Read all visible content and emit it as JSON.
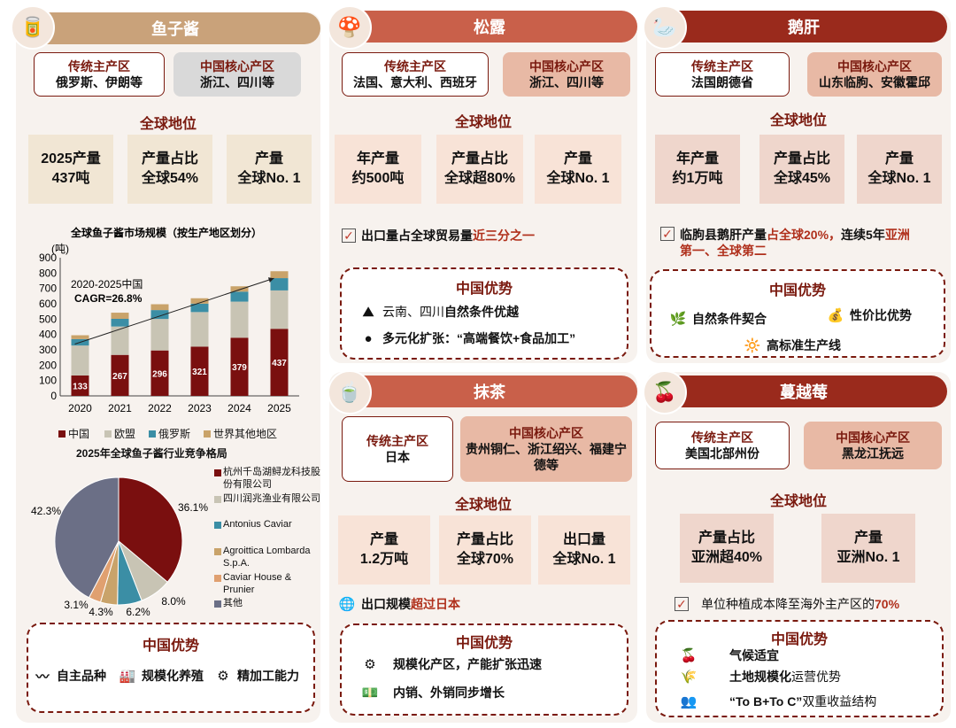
{
  "caviar": {
    "header": "鱼子酱",
    "trad_title": "传统主产区",
    "trad_value": "俄罗斯、伊朗等",
    "china_title": "中国核心产区",
    "china_value": "浙江、四川等",
    "global_title": "全球地位",
    "stats": [
      {
        "l1": "2025产量",
        "l2": "437吨"
      },
      {
        "l1": "产量占比",
        "l2": "全球54%"
      },
      {
        "l1": "产量",
        "l2": "全球No. 1"
      }
    ],
    "adv_title": "中国优势",
    "advantages": [
      "自主品种",
      "规模化养殖",
      "精加工能力"
    ]
  },
  "truffle": {
    "header": "松露",
    "trad_title": "传统主产区",
    "trad_value": "法国、意大利、西班牙",
    "china_title": "中国核心产区",
    "china_value": "浙江、四川等",
    "global_title": "全球地位",
    "stats": [
      {
        "l1": "年产量",
        "l2": "约500吨"
      },
      {
        "l1": "产量占比",
        "l2": "全球超80%"
      },
      {
        "l1": "产量",
        "l2": "全球No. 1"
      }
    ],
    "note_a": "出口量占全球贸易量",
    "note_b": "近三分之一",
    "adv_title": "中国优势",
    "adv1_a": "云南、四川",
    "adv1_b": "自然条件优越",
    "adv2": "多元化扩张：“高端餐饮+食品加工”"
  },
  "foiegras": {
    "header": "鹅肝",
    "trad_title": "传统主产区",
    "trad_value": "法国朗德省",
    "china_title": "中国核心产区",
    "china_value": "山东临朐、安徽霍邱",
    "global_title": "全球地位",
    "stats": [
      {
        "l1": "年产量",
        "l2": "约1万吨"
      },
      {
        "l1": "产量占比",
        "l2": "全球45%"
      },
      {
        "l1": "产量",
        "l2": "全球No. 1"
      }
    ],
    "note_a": "临朐县鹅肝产量",
    "note_b": "占全球20%，",
    "note_c": "连续5年",
    "note_d": "亚洲",
    "note_e": "第一、全球第二",
    "adv_title": "中国优势",
    "advantages": [
      "自然条件契合",
      "性价比优势",
      "高标准生产线"
    ]
  },
  "matcha": {
    "header": "抹茶",
    "trad_title": "传统主产区",
    "trad_value": "日本",
    "china_title": "中国核心产区",
    "china_value": "贵州铜仁、浙江绍兴、福建宁德等",
    "global_title": "全球地位",
    "stats": [
      {
        "l1": "产量",
        "l2": "1.2万吨"
      },
      {
        "l1": "产量占比",
        "l2": "全球70%"
      },
      {
        "l1": "出口量",
        "l2": "全球No. 1"
      }
    ],
    "note_a": "出口规模",
    "note_b": "超过日本",
    "adv_title": "中国优势",
    "advantages": [
      "规模化产区，产能扩张迅速",
      "内销、外销同步增长"
    ]
  },
  "cranberry": {
    "header": "蔓越莓",
    "trad_title": "传统主产区",
    "trad_value": "美国北部州份",
    "china_title": "中国核心产区",
    "china_value": "黑龙江抚远",
    "global_title": "全球地位",
    "stats": [
      {
        "l1": "产量占比",
        "l2": "亚洲超40%"
      },
      {
        "l1": "产量",
        "l2": "亚洲No. 1"
      }
    ],
    "note_a": "单位种植成本降至海外主产区的",
    "note_b": "70%",
    "adv_title": "中国优势",
    "adv1": "气候适宜",
    "adv2_a": "土地规模化",
    "adv2_b": "运营优势",
    "adv3_a": "“To B+To C”",
    "adv3_b": "双重收益结构"
  },
  "colors": {
    "china": "#7a0f0f",
    "eu": "#c8c4b4",
    "russia": "#3b8ea5",
    "other": "#c9a36a",
    "pie_hangzhou": "#7a0f0f",
    "pie_sichuan": "#c8c4b4",
    "pie_antonius": "#3b8ea5",
    "pie_agroittica": "#c9a36a",
    "pie_caviarhouse": "#e0a070",
    "pie_other": "#6b6f86"
  },
  "chart_data": [
    {
      "type": "bar",
      "stacked": true,
      "title": "全球鱼子酱市场规模（按生产地区划分）",
      "unit": "(吨)",
      "categories": [
        "2020",
        "2021",
        "2022",
        "2023",
        "2024",
        "2025"
      ],
      "ylim": [
        0,
        900
      ],
      "yticks": [
        0,
        100,
        200,
        300,
        400,
        500,
        600,
        700,
        800,
        900
      ],
      "series": [
        {
          "name": "中国",
          "values": [
            133,
            267,
            296,
            321,
            379,
            437
          ],
          "labels": [
            "133",
            "267",
            "296",
            "321",
            "379",
            "437"
          ]
        },
        {
          "name": "欧盟",
          "values": [
            195,
            185,
            205,
            225,
            235,
            250
          ]
        },
        {
          "name": "俄罗斯",
          "values": [
            42,
            50,
            58,
            55,
            65,
            80
          ]
        },
        {
          "name": "世界其他地区",
          "values": [
            25,
            40,
            38,
            35,
            35,
            45
          ]
        }
      ],
      "annotation_line1": "2020-2025中国",
      "annotation_line2": "CAGR=26.8%",
      "legend": "bottom"
    },
    {
      "type": "pie",
      "title": "2025年全球鱼子酱行业竞争格局",
      "slices": [
        {
          "name": "杭州千岛湖鲟龙科技股份有限公司",
          "value": 36.1,
          "label": "36.1%"
        },
        {
          "name": "四川润兆渔业有限公司",
          "value": 8.0,
          "label": "8.0%"
        },
        {
          "name": "Antonius Caviar",
          "value": 6.2,
          "label": "6.2%"
        },
        {
          "name": "Agroittica Lombarda S.p.A.",
          "value": 4.3,
          "label": "4.3%"
        },
        {
          "name": "Caviar House & Prunier",
          "value": 3.1,
          "label": "3.1%"
        },
        {
          "name": "其他",
          "value": 42.3,
          "label": "42.3%"
        }
      ],
      "legend": "right"
    }
  ]
}
